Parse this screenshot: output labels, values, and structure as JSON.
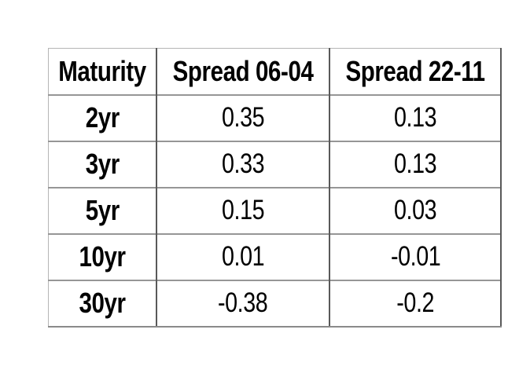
{
  "colors": {
    "background": "#ffffff",
    "text": "#000000",
    "vertical_grid": "#595959",
    "horizontal_grid": "#969696",
    "outer_edge": "#b5b5b5"
  },
  "chart_data": {
    "type": "table",
    "title": "",
    "columns": [
      "Maturity",
      "Spread 06-04",
      "Spread 22-11"
    ],
    "rows": [
      [
        "2yr",
        "0.35",
        "0.13"
      ],
      [
        "3yr",
        "0.33",
        "0.13"
      ],
      [
        "5yr",
        "0.15",
        "0.03"
      ],
      [
        "10yr",
        "0.01",
        "-0.01"
      ],
      [
        "30yr",
        "-0.38",
        "-0.2"
      ]
    ]
  }
}
